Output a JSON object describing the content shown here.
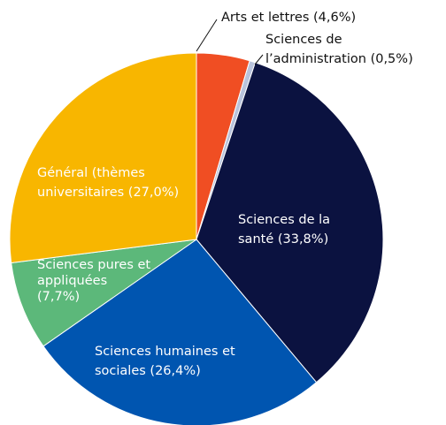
{
  "chart_data": {
    "type": "pie",
    "labels": [
      [
        "Arts et lettres (4,6%)"
      ],
      [
        "Sciences de",
        "l’administration (0,5%)"
      ],
      [
        "Sciences de la",
        "santé (33,8%)"
      ],
      [
        "Sciences humaines et",
        "sociales (26,4%)"
      ],
      [
        "Sciences pures et",
        "appliquées",
        "(7,7%)"
      ],
      [
        "Général (thèmes",
        "universitaires (27,0%)"
      ]
    ],
    "values": [
      4.6,
      0.5,
      33.8,
      26.4,
      7.7,
      27.0
    ],
    "colors": [
      "#f04e23",
      "#b9c3dc",
      "#0b1240",
      "#0055b0",
      "#5cb87a",
      "#f8b600"
    ]
  }
}
